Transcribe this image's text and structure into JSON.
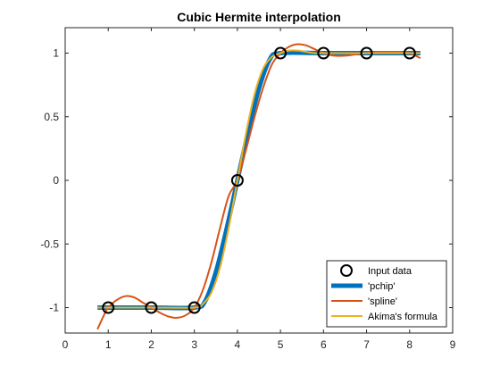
{
  "chart_data": {
    "type": "line",
    "title": "Cubic Hermite interpolation",
    "xlabel": "",
    "ylabel": "",
    "xlim": [
      0,
      9
    ],
    "ylim": [
      -1.2,
      1.2
    ],
    "xticks": [
      0,
      1,
      2,
      3,
      4,
      5,
      6,
      7,
      8,
      9
    ],
    "yticks": [
      -1,
      -0.5,
      0,
      0.5,
      1
    ],
    "xtick_labels": [
      "0",
      "1",
      "2",
      "3",
      "4",
      "5",
      "6",
      "7",
      "8",
      "9"
    ],
    "ytick_labels": [
      "-1",
      "-0.5",
      "0",
      "0.5",
      "1"
    ],
    "grid": false,
    "legend_position": "bottom-right",
    "input_data": {
      "name": "Input data",
      "x": [
        1,
        2,
        3,
        4,
        5,
        6,
        7,
        8
      ],
      "y": [
        -1,
        -1,
        -1,
        0,
        1,
        1,
        1,
        1
      ],
      "color": "#000000"
    },
    "series": [
      {
        "name": "'pchip'",
        "color": "#0072BD",
        "x": [
          0.75,
          1,
          2,
          3,
          3.25,
          3.5,
          3.75,
          4,
          4.25,
          4.5,
          4.75,
          5,
          6,
          7,
          8,
          8.25
        ],
        "y": [
          -1,
          -1,
          -1,
          -1,
          -0.95,
          -0.72,
          -0.38,
          0,
          0.38,
          0.72,
          0.95,
          1,
          1,
          1,
          1,
          1
        ]
      },
      {
        "name": "'spline'",
        "color": "#D95319",
        "x": [
          0.75,
          0.9,
          1,
          1.2,
          1.4,
          1.6,
          1.8,
          2,
          2.2,
          2.4,
          2.6,
          2.8,
          3,
          3.2,
          3.4,
          3.6,
          3.8,
          4,
          4.2,
          4.4,
          4.6,
          4.8,
          5,
          5.2,
          5.4,
          5.6,
          5.8,
          6,
          6.25,
          6.5,
          6.75,
          7,
          7.25,
          7.5,
          7.75,
          8,
          8.25
        ],
        "y": [
          -1.17,
          -1.06,
          -1,
          -0.94,
          -0.91,
          -0.92,
          -0.96,
          -1,
          -1.04,
          -1.07,
          -1.08,
          -1.06,
          -1,
          -0.86,
          -0.64,
          -0.37,
          -0.12,
          0,
          0.24,
          0.5,
          0.73,
          0.91,
          1,
          1.05,
          1.07,
          1.06,
          1.03,
          1,
          0.98,
          0.98,
          0.99,
          1,
          1.01,
          1.01,
          1.01,
          1,
          0.96
        ]
      },
      {
        "name": "Akima's formula",
        "color": "#EDB120",
        "x": [
          0.75,
          1,
          2,
          3,
          3.2,
          3.4,
          3.6,
          3.8,
          4,
          4.2,
          4.4,
          4.6,
          4.8,
          5,
          5.2,
          5.4,
          5.6,
          5.8,
          6,
          7,
          8,
          8.25
        ],
        "y": [
          -1,
          -1,
          -1,
          -1,
          -0.97,
          -0.88,
          -0.68,
          -0.37,
          0,
          0.37,
          0.68,
          0.88,
          0.97,
          1,
          1.02,
          1.02,
          1.01,
          1.0,
          1,
          1,
          1,
          1
        ]
      }
    ]
  }
}
